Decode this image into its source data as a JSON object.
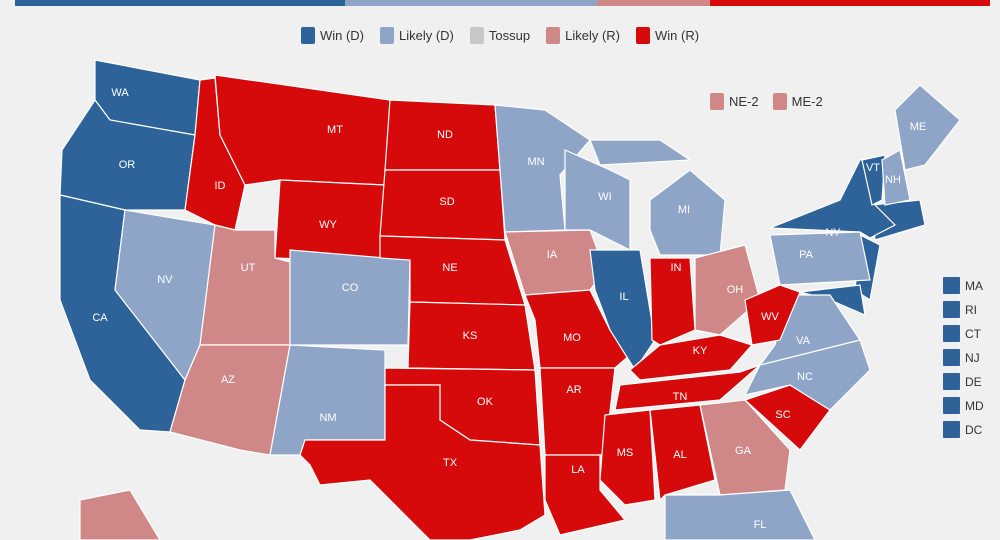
{
  "colors": {
    "win_d": "#2e6399",
    "likely_d": "#8ea5c7",
    "tossup": "#c8c8c8",
    "likely_r": "#cf8787",
    "win_r": "#d60a0a",
    "background": "#f0f0f0"
  },
  "bar": [
    {
      "rating": "win_d",
      "share": 0.338
    },
    {
      "rating": "likely_d",
      "share": 0.259
    },
    {
      "rating": "likely_r",
      "share": 0.116
    },
    {
      "rating": "win_r",
      "share": 0.287
    }
  ],
  "legend": [
    {
      "label": "Win (D)",
      "rating": "win_d"
    },
    {
      "label": "Likely (D)",
      "rating": "likely_d"
    },
    {
      "label": "Tossup",
      "rating": "tossup"
    },
    {
      "label": "Likely (R)",
      "rating": "likely_r"
    },
    {
      "label": "Win (R)",
      "rating": "win_r"
    }
  ],
  "districts": [
    {
      "label": "NE-2",
      "rating": "likely_r"
    },
    {
      "label": "ME-2",
      "rating": "likely_r"
    }
  ],
  "small_states": [
    {
      "label": "MA",
      "rating": "win_d"
    },
    {
      "label": "RI",
      "rating": "win_d"
    },
    {
      "label": "CT",
      "rating": "win_d"
    },
    {
      "label": "NJ",
      "rating": "win_d"
    },
    {
      "label": "DE",
      "rating": "win_d"
    },
    {
      "label": "MD",
      "rating": "win_d"
    },
    {
      "label": "DC",
      "rating": "win_d"
    }
  ],
  "states": [
    {
      "abbr": "WA",
      "rating": "win_d"
    },
    {
      "abbr": "OR",
      "rating": "win_d"
    },
    {
      "abbr": "CA",
      "rating": "win_d"
    },
    {
      "abbr": "NV",
      "rating": "likely_d"
    },
    {
      "abbr": "ID",
      "rating": "win_r"
    },
    {
      "abbr": "MT",
      "rating": "win_r"
    },
    {
      "abbr": "WY",
      "rating": "win_r"
    },
    {
      "abbr": "UT",
      "rating": "likely_r"
    },
    {
      "abbr": "CO",
      "rating": "likely_d"
    },
    {
      "abbr": "AZ",
      "rating": "likely_r"
    },
    {
      "abbr": "NM",
      "rating": "likely_d"
    },
    {
      "abbr": "ND",
      "rating": "win_r"
    },
    {
      "abbr": "SD",
      "rating": "win_r"
    },
    {
      "abbr": "NE",
      "rating": "win_r"
    },
    {
      "abbr": "KS",
      "rating": "win_r"
    },
    {
      "abbr": "OK",
      "rating": "win_r"
    },
    {
      "abbr": "TX",
      "rating": "win_r"
    },
    {
      "abbr": "MN",
      "rating": "likely_d"
    },
    {
      "abbr": "IA",
      "rating": "likely_r"
    },
    {
      "abbr": "MO",
      "rating": "win_r"
    },
    {
      "abbr": "AR",
      "rating": "win_r"
    },
    {
      "abbr": "LA",
      "rating": "win_r"
    },
    {
      "abbr": "WI",
      "rating": "likely_d"
    },
    {
      "abbr": "IL",
      "rating": "win_d"
    },
    {
      "abbr": "MI",
      "rating": "likely_d"
    },
    {
      "abbr": "IN",
      "rating": "win_r"
    },
    {
      "abbr": "OH",
      "rating": "likely_r"
    },
    {
      "abbr": "KY",
      "rating": "win_r"
    },
    {
      "abbr": "TN",
      "rating": "win_r"
    },
    {
      "abbr": "MS",
      "rating": "win_r"
    },
    {
      "abbr": "AL",
      "rating": "win_r"
    },
    {
      "abbr": "GA",
      "rating": "likely_r"
    },
    {
      "abbr": "FL",
      "rating": "likely_d"
    },
    {
      "abbr": "SC",
      "rating": "win_r"
    },
    {
      "abbr": "NC",
      "rating": "likely_d"
    },
    {
      "abbr": "VA",
      "rating": "likely_d"
    },
    {
      "abbr": "WV",
      "rating": "win_r"
    },
    {
      "abbr": "PA",
      "rating": "likely_d"
    },
    {
      "abbr": "NY",
      "rating": "win_d"
    },
    {
      "abbr": "VT",
      "rating": "win_d"
    },
    {
      "abbr": "NH",
      "rating": "likely_d"
    },
    {
      "abbr": "ME",
      "rating": "likely_d"
    }
  ]
}
